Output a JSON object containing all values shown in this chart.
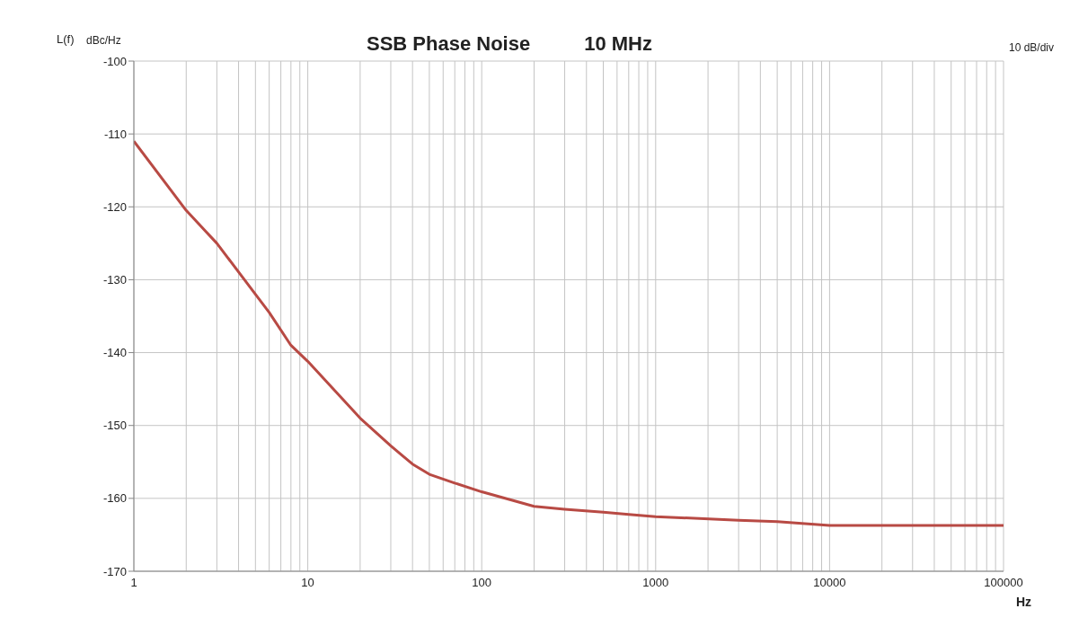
{
  "chart_data": {
    "type": "line",
    "title": "SSB Phase Noise",
    "subtitle": "10 MHz",
    "ylabel": "L(f)",
    "xlabel": "Hz",
    "annotations": [
      "dBc/Hz",
      "10 dB/div"
    ],
    "log": "x",
    "grid": true,
    "legend": false,
    "marker": "none",
    "line_style": "solid",
    "xlim": [
      1,
      100000
    ],
    "xticks": [
      1,
      {
        "value": 2,
        "label": null
      },
      {
        "value": 3,
        "label": null
      },
      {
        "value": 4,
        "label": null
      },
      {
        "value": 5,
        "label": null
      },
      {
        "value": 6,
        "label": null
      },
      {
        "value": 7,
        "label": null
      },
      {
        "value": 8,
        "label": null
      },
      {
        "value": 9,
        "label": null
      },
      10,
      {
        "value": 20,
        "label": null
      },
      {
        "value": 30,
        "label": null
      },
      {
        "value": 40,
        "label": null
      },
      {
        "value": 50,
        "label": null
      },
      {
        "value": 60,
        "label": null
      },
      {
        "value": 70,
        "label": null
      },
      {
        "value": 80,
        "label": null
      },
      {
        "value": 90,
        "label": null
      },
      100,
      {
        "value": 200,
        "label": null
      },
      {
        "value": 300,
        "label": null
      },
      {
        "value": 400,
        "label": null
      },
      {
        "value": 500,
        "label": null
      },
      {
        "value": 600,
        "label": null
      },
      {
        "value": 700,
        "label": null
      },
      {
        "value": 800,
        "label": null
      },
      {
        "value": 900,
        "label": null
      },
      1000,
      {
        "value": 2000,
        "label": null
      },
      {
        "value": 3000,
        "label": null
      },
      {
        "value": 4000,
        "label": null
      },
      {
        "value": 5000,
        "label": null
      },
      {
        "value": 6000,
        "label": null
      },
      {
        "value": 7000,
        "label": null
      },
      {
        "value": 8000,
        "label": null
      },
      {
        "value": 9000,
        "label": null
      },
      10000,
      {
        "value": 20000,
        "label": null
      },
      {
        "value": 30000,
        "label": null
      },
      {
        "value": 40000,
        "label": null
      },
      {
        "value": 50000,
        "label": null
      },
      {
        "value": 60000,
        "label": null
      },
      {
        "value": 70000,
        "label": null
      },
      {
        "value": 80000,
        "label": null
      },
      {
        "value": 90000,
        "label": null
      },
      100000
    ],
    "ylim": [
      -170,
      -100
    ],
    "yticks": [
      -170,
      -160,
      -150,
      -140,
      -130,
      -120,
      -110,
      -100
    ],
    "x": [
      1,
      2,
      3,
      5,
      6,
      8,
      10,
      20,
      30,
      40,
      50,
      70,
      100,
      200,
      300,
      500,
      700,
      1000,
      3000,
      5000,
      10000,
      100000
    ],
    "series": [
      {
        "color": "#b84a44",
        "values": [
          -111,
          -120.5,
          -125,
          -132,
          -134.5,
          -139,
          -141.2,
          -149,
          -152.8,
          -155.3,
          -156.7,
          -157.9,
          -159.1,
          -161.1,
          -161.5,
          -161.9,
          -162.2,
          -162.5,
          -163,
          -163.2,
          -163.7,
          -163.7
        ]
      }
    ]
  }
}
